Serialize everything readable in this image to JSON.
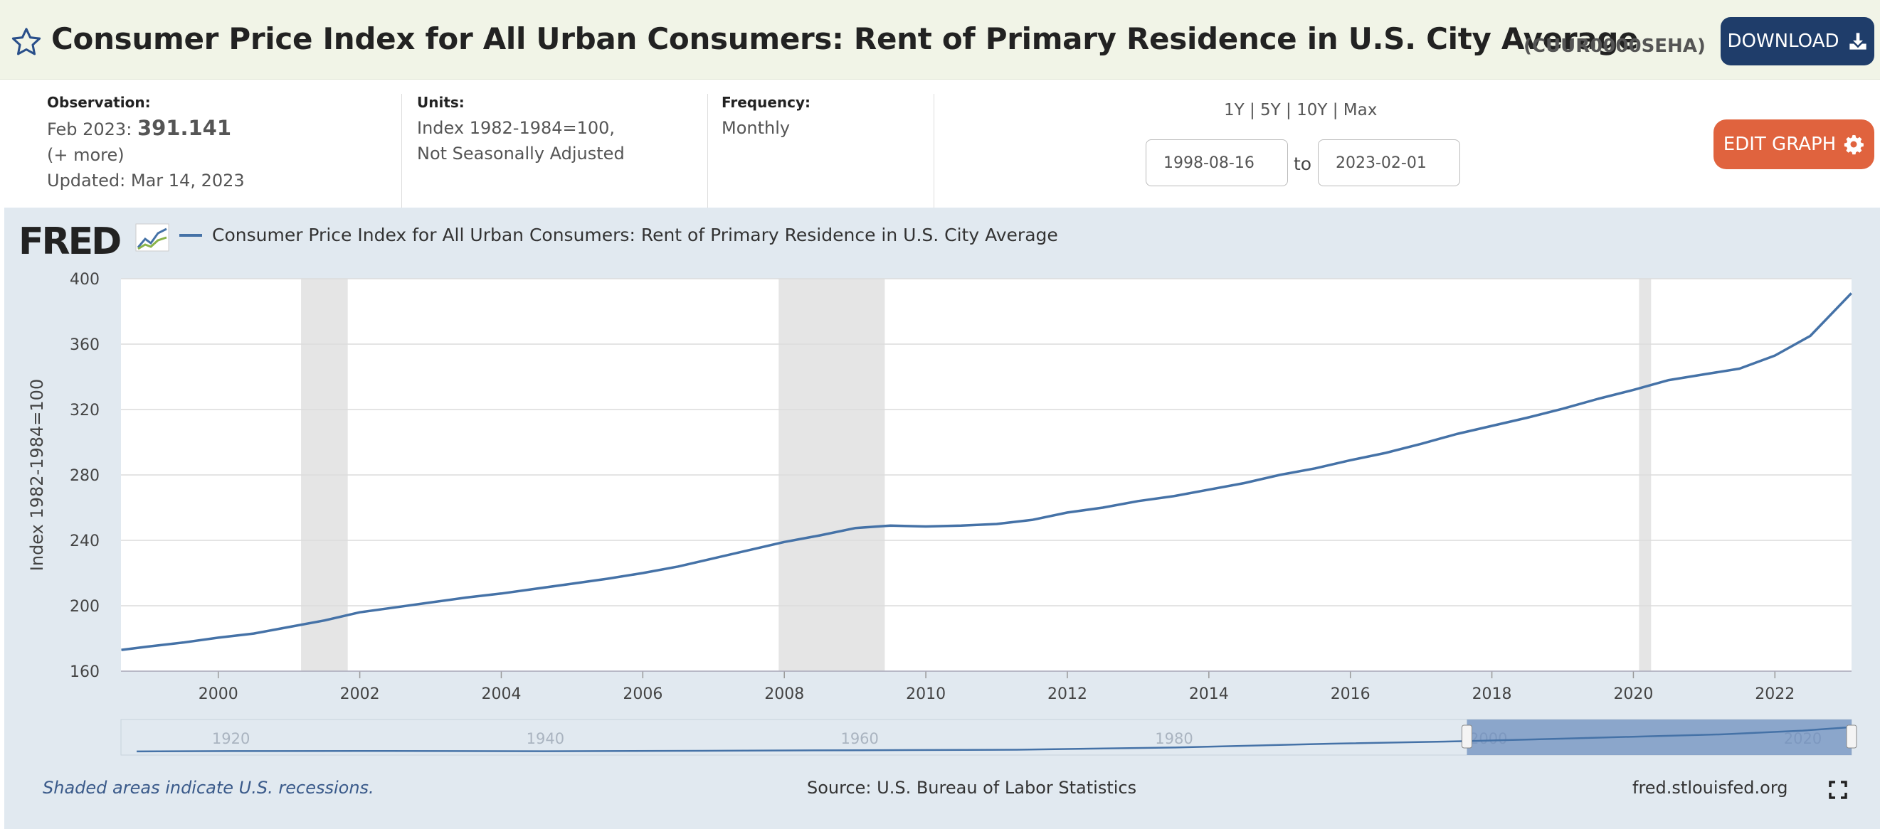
{
  "header": {
    "title": "Consumer Price Index for All Urban Consumers: Rent of Primary Residence in U.S. City Average",
    "series_id": "(CUUR0000SEHA)",
    "download_label": "DOWNLOAD"
  },
  "meta": {
    "observation_label": "Observation:",
    "observation_date": "Feb 2023:",
    "observation_value": "391.141",
    "more": "(+ more)",
    "updated": "Updated: Mar 14, 2023",
    "units_label": "Units:",
    "units_line1": "Index 1982-1984=100,",
    "units_line2": "Not Seasonally Adjusted",
    "frequency_label": "Frequency:",
    "frequency_value": "Monthly",
    "range_links": "1Y | 5Y | 10Y | Max",
    "start_date": "1998-08-16",
    "to_label": "to",
    "end_date": "2023-02-01",
    "edit_label": "EDIT GRAPH"
  },
  "legend": {
    "logo": "FRED",
    "series_name": "Consumer Price Index for All Urban Consumers: Rent of Primary Residence in U.S. City Average"
  },
  "footer": {
    "note": "Shaded areas indicate U.S. recessions.",
    "source": "Source: U.S. Bureau of Labor Statistics",
    "site": "fred.stlouisfed.org"
  },
  "colors": {
    "line": "#4572a7",
    "recession": "#e5e5e5",
    "download": "#1f3d6a",
    "edit": "#e0633e"
  },
  "chart_data": {
    "type": "line",
    "ylabel": "Index 1982-1984=100",
    "xlabel": "",
    "ylim": [
      160,
      400
    ],
    "xlim": [
      1998.625,
      2023.083
    ],
    "yticks": [
      160,
      200,
      240,
      280,
      320,
      360,
      400
    ],
    "xticks": [
      2000,
      2002,
      2004,
      2006,
      2008,
      2010,
      2012,
      2014,
      2016,
      2018,
      2020,
      2022
    ],
    "grid": true,
    "recessions": [
      [
        2001.17,
        2001.83
      ],
      [
        2007.92,
        2009.42
      ],
      [
        2020.08,
        2020.25
      ]
    ],
    "series": [
      {
        "x": [
          1998.63,
          1999.0,
          1999.5,
          2000.0,
          2000.5,
          2001.0,
          2001.5,
          2002.0,
          2002.5,
          2003.0,
          2003.5,
          2004.0,
          2004.5,
          2005.0,
          2005.5,
          2006.0,
          2006.5,
          2007.0,
          2007.5,
          2008.0,
          2008.5,
          2009.0,
          2009.5,
          2010.0,
          2010.5,
          2011.0,
          2011.5,
          2012.0,
          2012.5,
          2013.0,
          2013.5,
          2014.0,
          2014.5,
          2015.0,
          2015.5,
          2016.0,
          2016.5,
          2017.0,
          2017.5,
          2018.0,
          2018.5,
          2019.0,
          2019.5,
          2020.0,
          2020.5,
          2021.0,
          2021.5,
          2022.0,
          2022.5,
          2023.08
        ],
        "values": [
          173,
          175,
          177.5,
          180.5,
          183,
          187,
          191,
          196,
          199,
          202,
          205,
          207.5,
          210.5,
          213.5,
          216.5,
          220,
          224,
          229,
          234,
          239,
          243,
          247.5,
          249,
          248.5,
          249,
          250,
          252.5,
          257,
          260,
          264,
          267,
          271,
          275,
          280,
          284,
          289,
          293.5,
          299,
          305,
          310,
          315,
          320.5,
          326.5,
          332,
          338,
          341.5,
          345,
          353,
          365,
          391.141
        ]
      }
    ],
    "navigator": {
      "labels": [
        "1920",
        "1940",
        "1960",
        "1980",
        "2000",
        "2020"
      ]
    }
  }
}
